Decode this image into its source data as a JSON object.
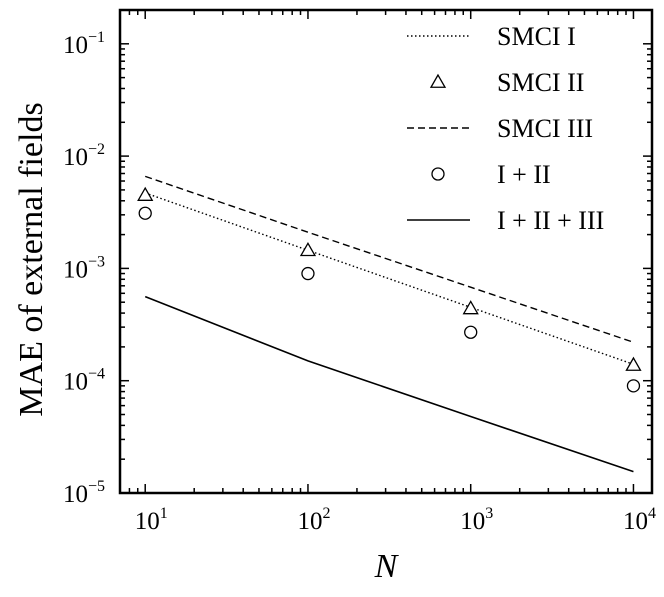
{
  "chart_data": {
    "type": "line",
    "title": "",
    "xlabel": "N",
    "ylabel": "MAE of external fields",
    "xscale": "log",
    "yscale": "log",
    "xlim": [
      7,
      13000
    ],
    "ylim": [
      1e-05,
      0.2
    ],
    "grid": false,
    "legend_position": "top-right",
    "x_ticks": [
      {
        "value": 10,
        "base": "10",
        "exp": "1"
      },
      {
        "value": 100,
        "base": "10",
        "exp": "2"
      },
      {
        "value": 1000,
        "base": "10",
        "exp": "3"
      },
      {
        "value": 10000,
        "base": "10",
        "exp": "4"
      }
    ],
    "y_ticks": [
      {
        "value": 1e-05,
        "base": "10",
        "exp": "−5"
      },
      {
        "value": 0.0001,
        "base": "10",
        "exp": "−4"
      },
      {
        "value": 0.001,
        "base": "10",
        "exp": "−3"
      },
      {
        "value": 0.01,
        "base": "10",
        "exp": "−2"
      },
      {
        "value": 0.1,
        "base": "10",
        "exp": "−1"
      }
    ],
    "series": [
      {
        "name": "SMCI I",
        "style": "dotted-line",
        "color": "#000000",
        "x": [
          10,
          100,
          1000,
          10000
        ],
        "y": [
          0.0047,
          0.00145,
          0.00045,
          0.00014
        ]
      },
      {
        "name": "SMCI II",
        "style": "triangle-markers",
        "color": "#000000",
        "x": [
          10,
          100,
          1000,
          10000
        ],
        "y": [
          0.0045,
          0.00145,
          0.00044,
          0.000138
        ]
      },
      {
        "name": "SMCI III",
        "style": "dashed-line",
        "color": "#000000",
        "x": [
          10,
          100,
          1000,
          10000
        ],
        "y": [
          0.0066,
          0.0021,
          0.00068,
          0.00022
        ]
      },
      {
        "name": "I + II",
        "style": "circle-markers",
        "color": "#000000",
        "x": [
          10,
          100,
          1000,
          10000
        ],
        "y": [
          0.0031,
          0.0009,
          0.00027,
          9e-05
        ]
      },
      {
        "name": "I + II + III",
        "style": "solid-line",
        "color": "#000000",
        "x": [
          10,
          100,
          1000,
          10000
        ],
        "y": [
          0.00056,
          0.00015,
          4.8e-05,
          1.55e-05
        ]
      }
    ]
  }
}
